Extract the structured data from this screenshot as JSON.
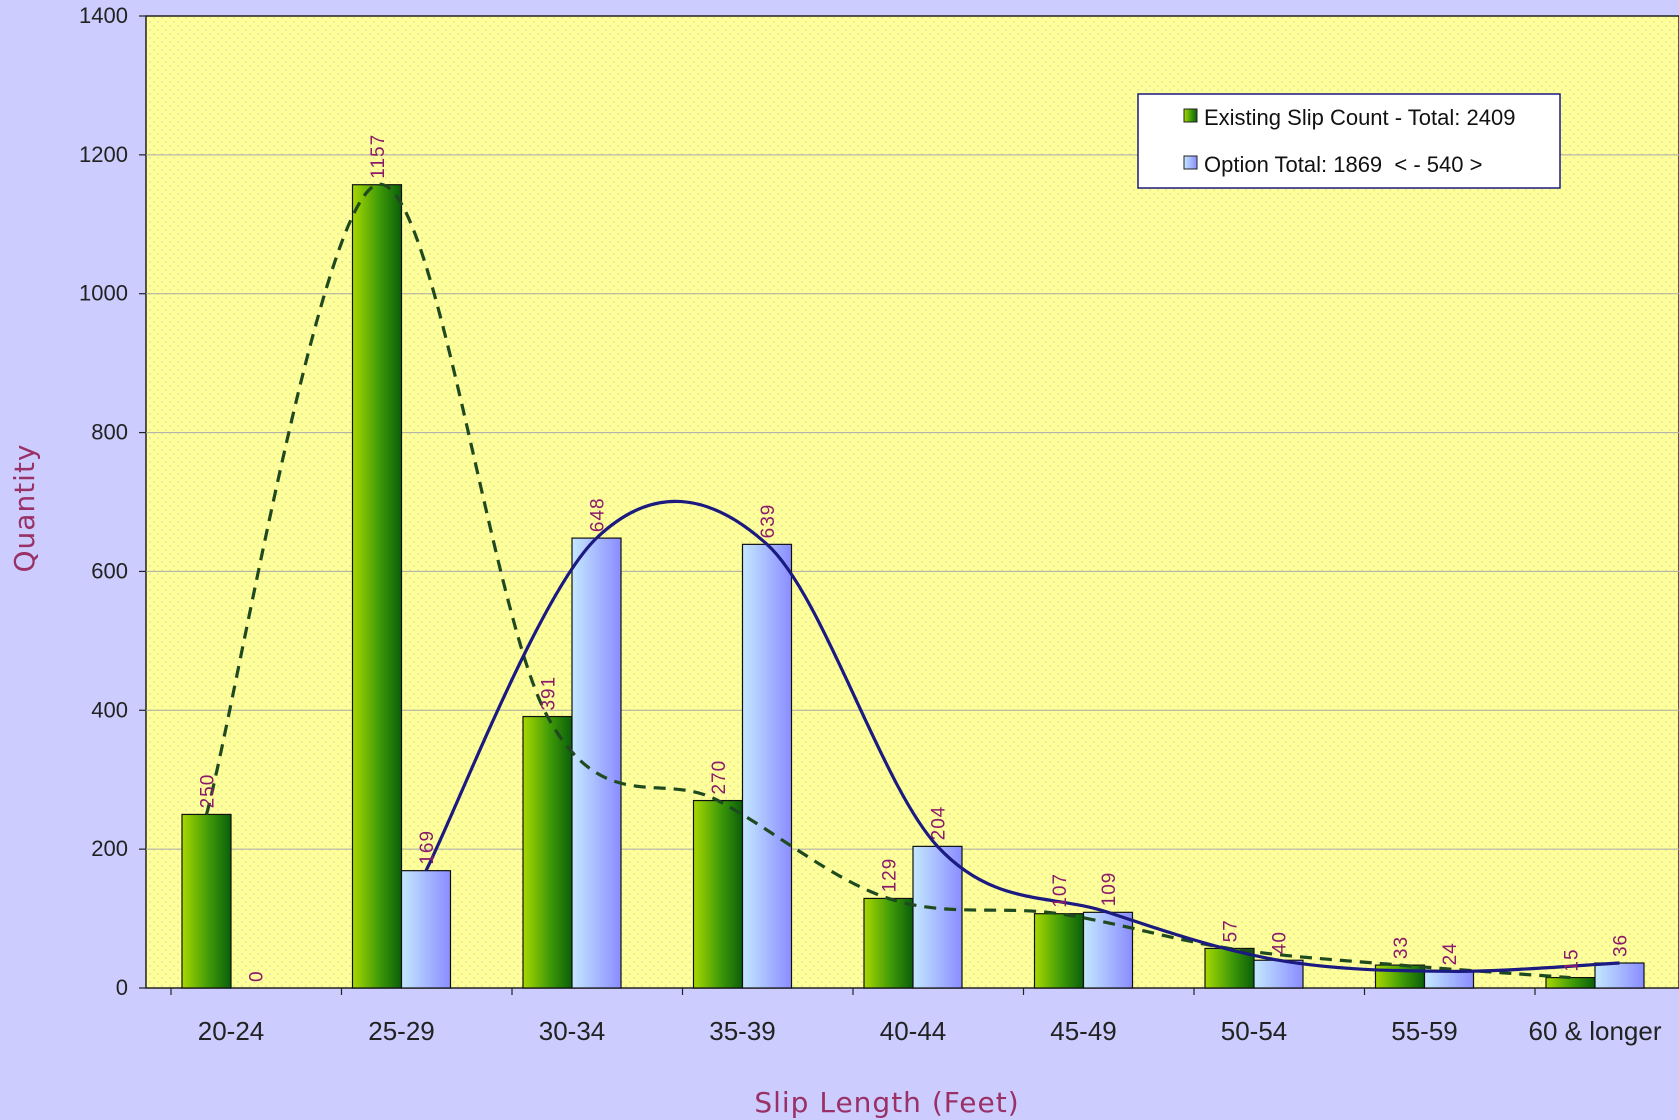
{
  "chart_data": {
    "type": "bar",
    "categories": [
      "20-24",
      "25-29",
      "30-34",
      "35-39",
      "40-44",
      "45-49",
      "50-54",
      "55-59",
      "60 & longer"
    ],
    "series": [
      {
        "name": "Existing Slip Count - Total: 2409",
        "values": [
          250,
          1157,
          391,
          270,
          129,
          107,
          57,
          33,
          15
        ]
      },
      {
        "name": "Option Total: 1869  < - 540 >",
        "values": [
          0,
          169,
          648,
          639,
          204,
          109,
          40,
          24,
          36
        ]
      }
    ],
    "trend_lines": [
      {
        "series": 0,
        "style": "dashed",
        "color": "#1f4a1f"
      },
      {
        "series": 1,
        "style": "solid",
        "color": "#1a1a80"
      }
    ],
    "xlabel": "Slip Length (Feet)",
    "ylabel": "Quantity",
    "ylim": [
      0,
      1400
    ],
    "yticks": [
      0,
      200,
      400,
      600,
      800,
      1000,
      1200,
      1400
    ],
    "grid": true,
    "legend_position": "top-right",
    "colors": {
      "page_background": "#ccccff",
      "plot_background": "#ffff99",
      "series1_light": "#9fd000",
      "series1_dark": "#0a6a0a",
      "series2_light": "#b8e0ff",
      "series2_dark": "#8c8cff",
      "data_label": "#8b1a6b",
      "axis_title": "#9a3166"
    }
  }
}
